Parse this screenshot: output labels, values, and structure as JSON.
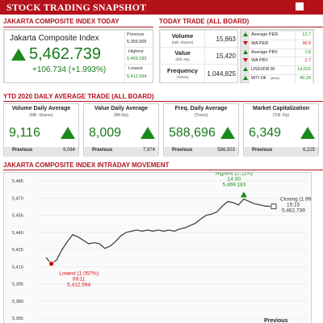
{
  "header": {
    "title": "STOCK TRADING SNAPSHOT"
  },
  "jci": {
    "section_title": "JAKARTA COMPOSITE INDEX TODAY",
    "name": "Jakarta Composite Index",
    "value": "5,462.739",
    "change": "+106.734 (+1.993%)",
    "previous_label": "Previous",
    "previous_value": "5,356.005",
    "highest_label": "Highest",
    "highest_value": "5,469.183",
    "lowest_label": "Lowest",
    "lowest_value": "5,412.594"
  },
  "today_trade": {
    "section_title": "TODAY TRADE (ALL BOARD)",
    "volume": {
      "label": "Volume",
      "unit": "(Mill. Shares)",
      "value": "15,863"
    },
    "value": {
      "label": "Value",
      "unit": "(Bill. Rp)",
      "value": "15,420"
    },
    "frequency": {
      "label": "Frequency",
      "unit": "(Times)",
      "value": "1,044,825"
    }
  },
  "ratios": [
    {
      "label": "Average PER",
      "value": "12.7",
      "dir": "up"
    },
    {
      "label": "WA PER",
      "value": "36.0",
      "dir": "down"
    },
    {
      "label": "Average PBV",
      "value": "1.8",
      "dir": "up"
    },
    {
      "label": "WA PBV",
      "value": "1.7",
      "dir": "down"
    },
    {
      "label": "USD/IDR BI",
      "value": "14,015",
      "dir": "up"
    },
    {
      "label": "WTI Oil",
      "unit": "($/bbl)",
      "value": "40.29",
      "dir": "up"
    }
  ],
  "ytd": {
    "section_title": "YTD 2020 DAILY AVERAGE TRADE (ALL BOARD)",
    "cards": [
      {
        "title": "Volume Daily Average",
        "unit": "(Mill. Shares)",
        "value": "9,116",
        "previous_label": "Previous",
        "previous_value": "9,084"
      },
      {
        "title": "Value Daily Average",
        "unit": "(Bill.Rp)",
        "value": "8,009",
        "previous_label": "Previous",
        "previous_value": "7,974"
      },
      {
        "title": "Freq. Daily Average",
        "unit": "(Times)",
        "value": "588,696",
        "previous_label": "Previous",
        "previous_value": "586,503"
      },
      {
        "title": "Market Capitalization",
        "unit": "(Trill. Rp)",
        "value": "6,349",
        "previous_label": "Previous",
        "previous_value": "6,225"
      }
    ]
  },
  "intraday": {
    "section_title": "JAKARTA COMPOSITE INDEX INTRADAY MOVEMENT",
    "highest": {
      "label": "Highest (2.11%)",
      "time": "14:30",
      "value": "5,469.183"
    },
    "lowest": {
      "label": "Lowest (1.057%)",
      "time": "09:11",
      "value": "5,412.594"
    },
    "closing": {
      "label": "Closing (1.99%)",
      "time": "15:15",
      "value": "5,462.739"
    },
    "previous_label": "Previous"
  },
  "chart_data": {
    "type": "line",
    "y_ticks": [
      "5,485",
      "5,470",
      "5,455",
      "5,440",
      "5,425",
      "5,410",
      "5,395",
      "5,380",
      "5,365"
    ],
    "ylim": [
      5365,
      5485
    ],
    "grid": true,
    "series": [
      {
        "values": [
          5418,
          5412.6,
          5416,
          5425,
          5432,
          5438,
          5436,
          5433,
          5430,
          5431,
          5430,
          5426,
          5428,
          5432,
          5437,
          5440,
          5441,
          5442,
          5441,
          5442,
          5441,
          5442,
          5441,
          5442,
          5441,
          5443,
          5444,
          5446,
          5448,
          5452,
          5455,
          5456,
          5458,
          5463,
          5467,
          5466,
          5464,
          5469.2,
          5467,
          5465,
          5464,
          5463,
          5462.7
        ]
      }
    ]
  },
  "colors": {
    "brand": "#b4121b",
    "up": "#1a8a1a",
    "down": "#d01010"
  }
}
